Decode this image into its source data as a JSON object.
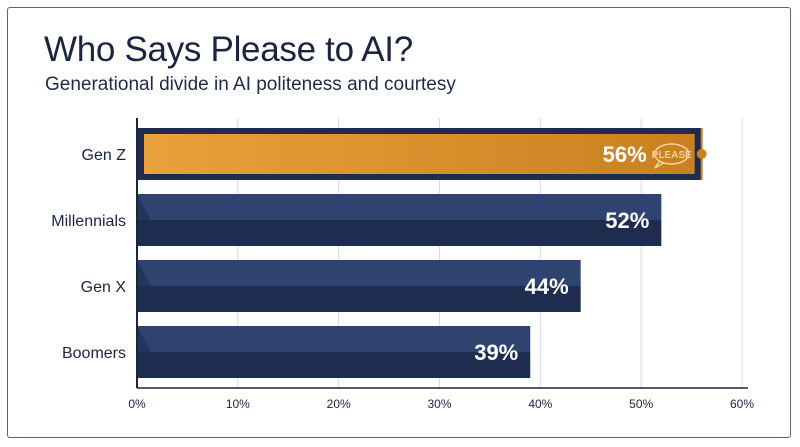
{
  "header": {
    "title": "Who Says Please to AI?",
    "subtitle": "Generational divide in AI politeness and courtesy"
  },
  "colors": {
    "navy": "#1e2d4f",
    "navy_light": "#2f4371",
    "highlight": "#e9a13c",
    "highlight_dark": "#c9801f",
    "grid": "#d7dbe3",
    "axis": "#1b2540"
  },
  "chart_data": {
    "type": "bar",
    "orientation": "horizontal",
    "categories": [
      "Gen Z",
      "Millennials",
      "Gen X",
      "Boomers"
    ],
    "values": [
      56,
      52,
      44,
      39
    ],
    "value_labels": [
      "56%",
      "52%",
      "44%",
      "39%"
    ],
    "highlight_index": 0,
    "highlight_badge": "PLEASE",
    "xlim": [
      0,
      60
    ],
    "xticks": [
      "0%",
      "10%",
      "20%",
      "30%",
      "40%",
      "50%",
      "60%"
    ],
    "grid": true
  }
}
